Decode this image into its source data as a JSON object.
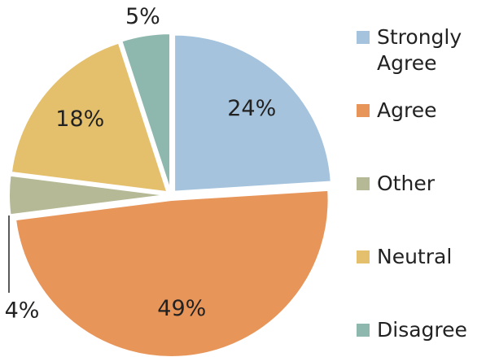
{
  "chart_data": {
    "type": "pie",
    "categories": [
      "Strongly Agree",
      "Agree",
      "Other",
      "Neutral",
      "Disagree"
    ],
    "values": [
      24,
      49,
      4,
      18,
      5
    ],
    "value_labels": [
      "24%",
      "49%",
      "4%",
      "18%",
      "5%"
    ],
    "colors": [
      "#a5c3dc",
      "#e8955a",
      "#b5b995",
      "#e4bf6c",
      "#8eb8ae"
    ],
    "legend": "right"
  }
}
